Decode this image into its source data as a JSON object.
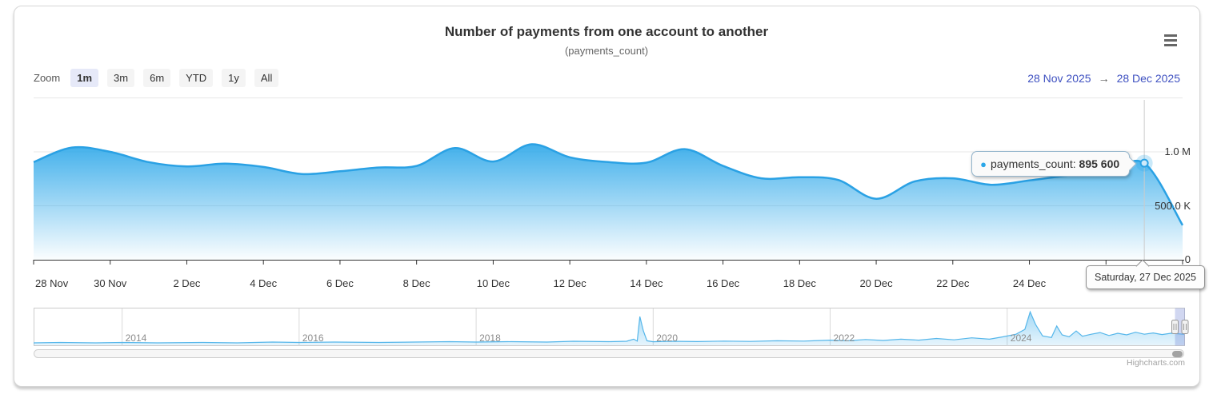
{
  "header": {
    "title": "Number of payments from one account to another",
    "subtitle": "(payments_count)"
  },
  "range_selector": {
    "zoom_label": "Zoom",
    "buttons": [
      {
        "label": "1m",
        "selected": true
      },
      {
        "label": "3m",
        "selected": false
      },
      {
        "label": "6m",
        "selected": false
      },
      {
        "label": "YTD",
        "selected": false
      },
      {
        "label": "1y",
        "selected": false
      },
      {
        "label": "All",
        "selected": false
      }
    ],
    "from": "28 Nov 2025",
    "arrow": "→",
    "to": "28 Dec 2025"
  },
  "tooltip": {
    "bullet": "●",
    "series_label": "payments_count:",
    "value": "895 600",
    "date_label": "Saturday, 27 Dec 2025"
  },
  "credits": {
    "label": "Highcharts.com"
  },
  "colors": {
    "series": "#2AA1E4",
    "area_top": "#2CA7E9",
    "nav_line": "#55B6EA",
    "nav_fill": "rgba(44,166,232,0.22)",
    "nav_mask": "rgba(102,123,210,0.3)",
    "grid": "#e7e7e7",
    "crosshair": "#cccccc",
    "axis": "#333333"
  },
  "chart_data": {
    "type": "area",
    "title": "Number of payments from one account to another",
    "subtitle": "(payments_count)",
    "series_name": "payments_count",
    "x": [
      "28 Nov",
      "29 Nov",
      "30 Nov",
      "1 Dec",
      "2 Dec",
      "3 Dec",
      "4 Dec",
      "5 Dec",
      "6 Dec",
      "7 Dec",
      "8 Dec",
      "9 Dec",
      "10 Dec",
      "11 Dec",
      "12 Dec",
      "13 Dec",
      "14 Dec",
      "15 Dec",
      "16 Dec",
      "17 Dec",
      "18 Dec",
      "19 Dec",
      "20 Dec",
      "21 Dec",
      "22 Dec",
      "23 Dec",
      "24 Dec",
      "25 Dec",
      "26 Dec",
      "27 Dec",
      "28 Dec"
    ],
    "values_thousands": [
      905,
      1040,
      1000,
      905,
      865,
      890,
      860,
      795,
      820,
      855,
      870,
      1035,
      910,
      1070,
      950,
      905,
      900,
      1025,
      870,
      755,
      765,
      740,
      565,
      725,
      755,
      695,
      735,
      780,
      800,
      895.6,
      320
    ],
    "hover_point": {
      "index": 29,
      "x_label": "27 Dec",
      "full_date": "Saturday, 27 Dec 2025",
      "value": 895600,
      "value_display": "895 600"
    },
    "xaxis_tick_labels": [
      "28 Nov",
      "30 Nov",
      "2 Dec",
      "4 Dec",
      "6 Dec",
      "8 Dec",
      "10 Dec",
      "12 Dec",
      "14 Dec",
      "16 Dec",
      "18 Dec",
      "20 Dec",
      "22 Dec",
      "24 Dec"
    ],
    "yaxis_ticks": [
      {
        "label": "0",
        "kvalue": 0
      },
      {
        "label": "500.0 K",
        "kvalue": 500
      },
      {
        "label": "1.0 M",
        "kvalue": 1000
      }
    ],
    "ylim_thousands": [
      0,
      1500
    ],
    "grid": true,
    "legend": "none",
    "navigator": {
      "year_labels": [
        "2014",
        "2016",
        "2018",
        "2020",
        "2022",
        "2024"
      ],
      "x_range": [
        2013,
        2026
      ],
      "points": [
        [
          2013.0,
          3.7
        ],
        [
          2013.3,
          4.9
        ],
        [
          2013.7,
          3.7
        ],
        [
          2014.0,
          4.9
        ],
        [
          2014.4,
          3.7
        ],
        [
          2014.9,
          4.9
        ],
        [
          2015.3,
          3.7
        ],
        [
          2015.7,
          6.1
        ],
        [
          2016.0,
          4.9
        ],
        [
          2016.4,
          6.1
        ],
        [
          2016.9,
          4.9
        ],
        [
          2017.3,
          6.1
        ],
        [
          2017.7,
          7.3
        ],
        [
          2018.0,
          6.1
        ],
        [
          2018.4,
          7.3
        ],
        [
          2018.8,
          6.1
        ],
        [
          2019.1,
          8.5
        ],
        [
          2019.5,
          7.3
        ],
        [
          2019.7,
          8.5
        ],
        [
          2019.78,
          15
        ],
        [
          2019.82,
          9
        ],
        [
          2019.85,
          84
        ],
        [
          2019.89,
          40
        ],
        [
          2019.93,
          10
        ],
        [
          2020.0,
          7
        ],
        [
          2020.2,
          8.5
        ],
        [
          2020.5,
          7.5
        ],
        [
          2020.8,
          9
        ],
        [
          2021.1,
          8
        ],
        [
          2021.4,
          10
        ],
        [
          2021.7,
          9
        ],
        [
          2022.0,
          12
        ],
        [
          2022.2,
          10
        ],
        [
          2022.4,
          14
        ],
        [
          2022.6,
          11
        ],
        [
          2022.8,
          15
        ],
        [
          2023.0,
          12
        ],
        [
          2023.2,
          17
        ],
        [
          2023.4,
          13
        ],
        [
          2023.6,
          19
        ],
        [
          2023.8,
          15
        ],
        [
          2023.95,
          22
        ],
        [
          2024.1,
          30
        ],
        [
          2024.2,
          45
        ],
        [
          2024.26,
          98
        ],
        [
          2024.32,
          60
        ],
        [
          2024.4,
          25
        ],
        [
          2024.5,
          20
        ],
        [
          2024.56,
          55
        ],
        [
          2024.62,
          28
        ],
        [
          2024.7,
          22
        ],
        [
          2024.78,
          40
        ],
        [
          2024.85,
          24
        ],
        [
          2024.95,
          30
        ],
        [
          2025.05,
          35
        ],
        [
          2025.15,
          26
        ],
        [
          2025.25,
          33
        ],
        [
          2025.35,
          28
        ],
        [
          2025.45,
          36
        ],
        [
          2025.55,
          30
        ],
        [
          2025.65,
          34
        ],
        [
          2025.75,
          29
        ],
        [
          2025.85,
          33
        ],
        [
          2025.95,
          31
        ],
        [
          2026.0,
          30
        ]
      ]
    }
  }
}
